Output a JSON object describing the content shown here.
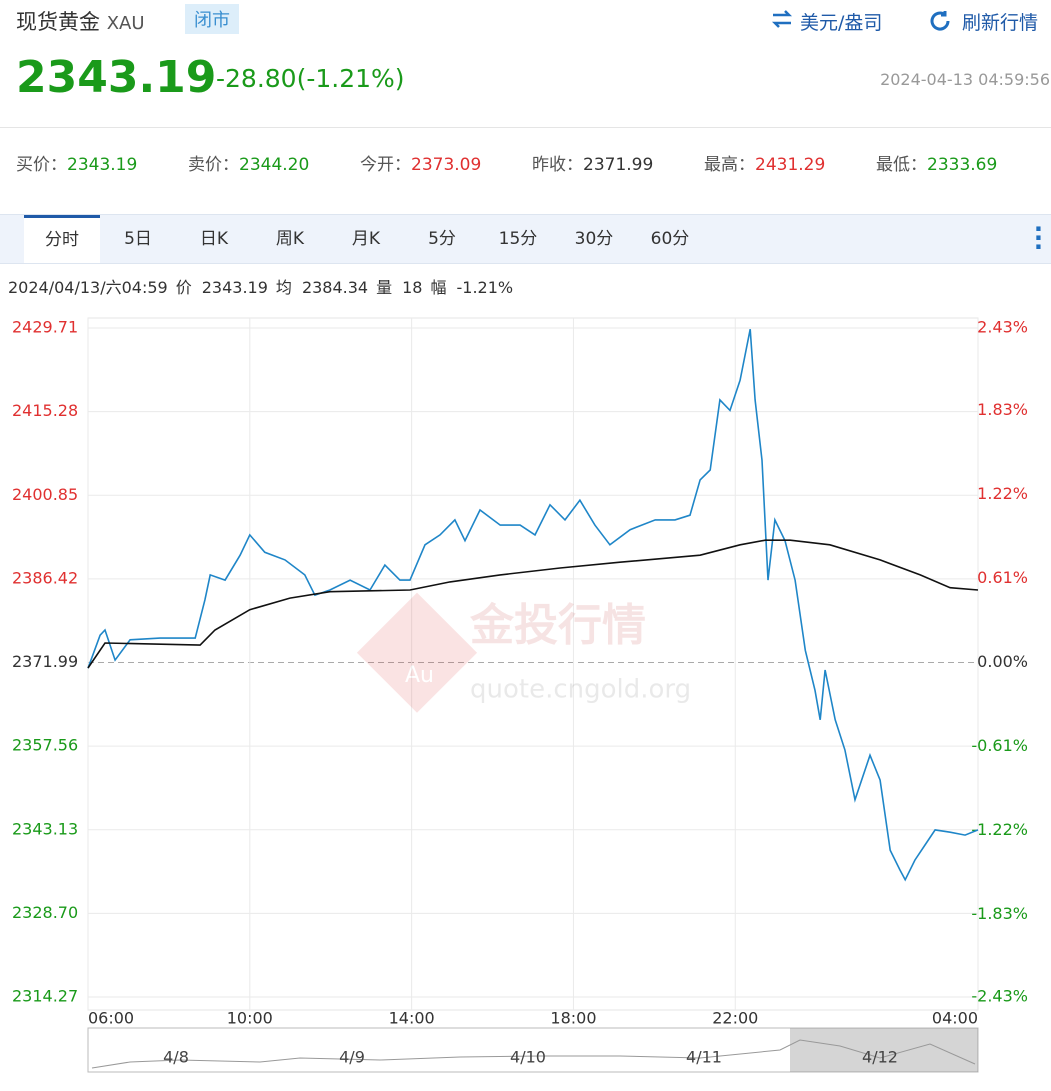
{
  "header": {
    "title": "现货黄金",
    "code": "XAU",
    "status": "闭市",
    "unit_link": "美元/盎司",
    "refresh_link": "刷新行情",
    "price": "2343.19",
    "change": "-28.80(-1.21%)",
    "time": "2024-04-13 04:59:56"
  },
  "quotes": [
    {
      "label": "买价：",
      "value": "2343.19",
      "color": "#1a9a1a"
    },
    {
      "label": "卖价：",
      "value": "2344.20",
      "color": "#1a9a1a"
    },
    {
      "label": "今开：",
      "value": "2373.09",
      "color": "#e03030"
    },
    {
      "label": "昨收：",
      "value": "2371.99",
      "color": "#333333"
    },
    {
      "label": "最高：",
      "value": "2431.29",
      "color": "#e03030"
    },
    {
      "label": "最低：",
      "value": "2333.69",
      "color": "#1a9a1a"
    }
  ],
  "tabs": [
    "分时",
    "5日",
    "日K",
    "周K",
    "月K",
    "5分",
    "15分",
    "30分",
    "60分"
  ],
  "active_tab": 0,
  "info": [
    "2024/04/13/六04:59",
    "价",
    "2343.19",
    "均",
    "2384.34",
    "量",
    "18",
    "幅",
    "-1.21%"
  ],
  "watermark": {
    "badge": "Au",
    "brand": "金投行情",
    "site": "quote.cngold.org"
  },
  "navigator": {
    "labels": [
      "4/8",
      "4/9",
      "4/10",
      "4/11",
      "4/12"
    ]
  },
  "chart_data": {
    "type": "line",
    "grid": true,
    "up_color": "#e03030",
    "down_color": "#1a9a1a",
    "base_color": "#333333",
    "xlim": [
      6,
      28
    ],
    "xticks": [
      {
        "value": 6,
        "label": "06:00"
      },
      {
        "value": 10,
        "label": "10:00"
      },
      {
        "value": 14,
        "label": "14:00"
      },
      {
        "value": 18,
        "label": "18:00"
      },
      {
        "value": 22,
        "label": "22:00"
      },
      {
        "value": 28,
        "label": "04:00"
      }
    ],
    "ylim": [
      2314.27,
      2429.71
    ],
    "yticks": [
      2429.71,
      2415.28,
      2400.85,
      2386.42,
      2371.99,
      2357.56,
      2343.13,
      {
        "value": 2328.7,
        "label": "2328.70"
      },
      2314.27
    ],
    "y2lim": [
      -2.43,
      2.43
    ],
    "y2ticks": [
      {
        "value": 2.43,
        "label": "2.43%"
      },
      {
        "value": 1.83,
        "label": "1.83%"
      },
      {
        "value": 1.22,
        "label": "1.22%"
      },
      {
        "value": 0.61,
        "label": "0.61%"
      },
      {
        "value": 0,
        "label": "0.00%"
      },
      {
        "value": -0.61,
        "label": "-0.61%"
      },
      {
        "value": -1.22,
        "label": "-1.22%"
      },
      {
        "value": -1.83,
        "label": "-1.83%"
      },
      {
        "value": -2.43,
        "label": "-2.43%"
      }
    ],
    "series": [
      {
        "color": "#1f86c8",
        "x": [
          6.0,
          6.3,
          6.42,
          6.67,
          7.04,
          7.78,
          8.65,
          8.89,
          9.02,
          9.39,
          9.76,
          10.0,
          10.37,
          10.87,
          11.36,
          11.61,
          11.98,
          12.48,
          12.97,
          13.34,
          13.71,
          13.96,
          14.33,
          14.7,
          15.07,
          15.32,
          15.69,
          16.19,
          16.68,
          17.05,
          17.42,
          17.79,
          18.16,
          18.53,
          18.9,
          19.4,
          20.02,
          20.51,
          20.88,
          21.13,
          21.38,
          21.62,
          21.87,
          22.12,
          22.37,
          22.49,
          22.66,
          22.81,
          22.98,
          23.23,
          23.48,
          23.73,
          23.97,
          24.1,
          24.22,
          24.47,
          24.71,
          24.96,
          25.33,
          25.58,
          25.83,
          26.07,
          26.2,
          26.44,
          26.69,
          26.94,
          27.31,
          27.68,
          28.0
        ],
        "values": [
          2371.0,
          2376.7,
          2377.6,
          2372.4,
          2375.9,
          2376.2,
          2376.2,
          2382.8,
          2387.1,
          2386.2,
          2390.5,
          2394.0,
          2391.0,
          2389.7,
          2387.1,
          2383.6,
          2384.5,
          2386.2,
          2384.5,
          2388.8,
          2386.2,
          2386.2,
          2392.3,
          2394.0,
          2396.6,
          2393.0,
          2398.3,
          2395.7,
          2395.7,
          2394.0,
          2399.2,
          2396.6,
          2400.0,
          2395.7,
          2392.3,
          2394.9,
          2396.6,
          2396.6,
          2397.4,
          2403.5,
          2405.2,
          2417.3,
          2415.5,
          2420.7,
          2429.5,
          2417.3,
          2406.9,
          2386.2,
          2396.6,
          2393.0,
          2386.2,
          2374.1,
          2367.2,
          2362.1,
          2370.7,
          2362.1,
          2356.9,
          2348.3,
          2356.0,
          2351.7,
          2339.6,
          2336.2,
          2334.5,
          2337.9,
          2340.5,
          2343.1,
          2342.7,
          2342.2,
          2343.1
        ]
      },
      {
        "color": "#111111",
        "x": [
          6.0,
          6.42,
          8.77,
          9.14,
          10.0,
          10.99,
          11.98,
          13.96,
          14.95,
          16.19,
          17.67,
          19.15,
          21.13,
          22.12,
          22.74,
          23.36,
          24.34,
          25.58,
          26.57,
          27.31,
          28.0
        ],
        "values": [
          2371.04,
          2375.35,
          2375.0,
          2377.6,
          2381.1,
          2383.1,
          2384.2,
          2384.5,
          2385.9,
          2387.1,
          2388.3,
          2389.3,
          2390.5,
          2392.3,
          2393.1,
          2393.1,
          2392.3,
          2389.7,
          2387.1,
          2384.9,
          2384.5
        ]
      }
    ]
  }
}
